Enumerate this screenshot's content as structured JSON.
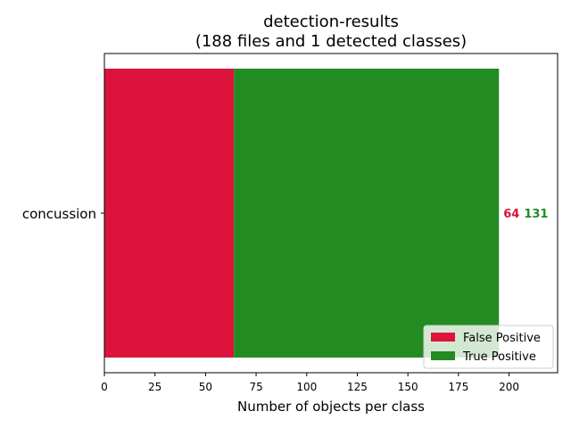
{
  "chart_data": {
    "type": "bar",
    "orientation": "horizontal",
    "stacked": true,
    "title": "detection-results",
    "subtitle": "(188 files and 1 detected classes)",
    "xlabel": "Number of objects per class",
    "ylabel": "",
    "categories": [
      "concussion"
    ],
    "series": [
      {
        "name": "False Positive",
        "values": [
          64
        ],
        "color": "#DC143C"
      },
      {
        "name": "True Positive",
        "values": [
          131
        ],
        "color": "#228B22"
      }
    ],
    "xlim": [
      0,
      224
    ],
    "xticks": [
      0,
      25,
      50,
      75,
      100,
      125,
      150,
      175,
      200
    ],
    "grid": false,
    "legend_position": "bottom-right"
  }
}
